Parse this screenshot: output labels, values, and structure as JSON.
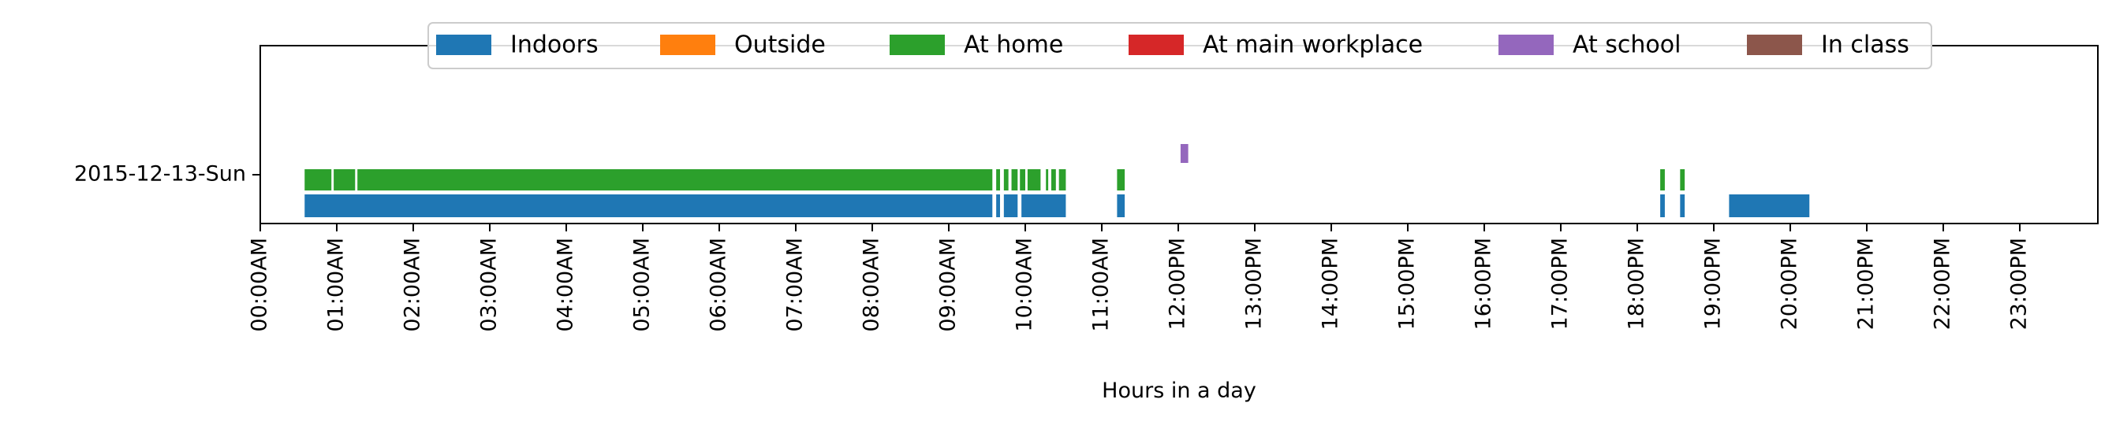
{
  "chart_data": {
    "type": "timeline",
    "title": "",
    "xlabel": "Hours in a day",
    "ylabel": "",
    "row_label": "2015-12-13-Sun",
    "xlim": [
      0,
      24
    ],
    "x_ticks": [
      "00:00AM",
      "01:00AM",
      "02:00AM",
      "03:00AM",
      "04:00AM",
      "05:00AM",
      "06:00AM",
      "07:00AM",
      "08:00AM",
      "09:00AM",
      "10:00AM",
      "11:00AM",
      "12:00PM",
      "13:00PM",
      "14:00PM",
      "15:00PM",
      "16:00PM",
      "17:00PM",
      "18:00PM",
      "19:00PM",
      "20:00PM",
      "21:00PM",
      "22:00PM",
      "23:00PM"
    ],
    "legend_position": "top-center",
    "grid": false,
    "series": [
      {
        "name": "Indoors",
        "color": "#1f77b4",
        "intervals": [
          [
            0.58,
            9.57
          ],
          [
            9.62,
            9.67
          ],
          [
            9.72,
            9.9
          ],
          [
            9.95,
            10.53
          ],
          [
            11.2,
            11.3
          ],
          [
            18.3,
            18.36
          ],
          [
            18.56,
            18.62
          ],
          [
            19.2,
            20.25
          ]
        ]
      },
      {
        "name": "Outside",
        "color": "#ff7f0e",
        "intervals": []
      },
      {
        "name": "At home",
        "color": "#2ca02c",
        "intervals": [
          [
            0.58,
            0.93
          ],
          [
            0.96,
            1.24
          ],
          [
            1.27,
            9.57
          ],
          [
            9.62,
            9.67
          ],
          [
            9.72,
            9.78
          ],
          [
            9.82,
            9.9
          ],
          [
            9.93,
            10.0
          ],
          [
            10.03,
            10.2
          ],
          [
            10.27,
            10.3
          ],
          [
            10.34,
            10.4
          ],
          [
            10.44,
            10.53
          ],
          [
            11.2,
            11.3
          ],
          [
            18.3,
            18.36
          ],
          [
            18.56,
            18.62
          ]
        ]
      },
      {
        "name": "At main workplace",
        "color": "#d62728",
        "intervals": []
      },
      {
        "name": "At school",
        "color": "#9467bd",
        "intervals": [
          [
            12.03,
            12.13
          ]
        ]
      },
      {
        "name": "In class",
        "color": "#8c564b",
        "intervals": []
      }
    ]
  }
}
